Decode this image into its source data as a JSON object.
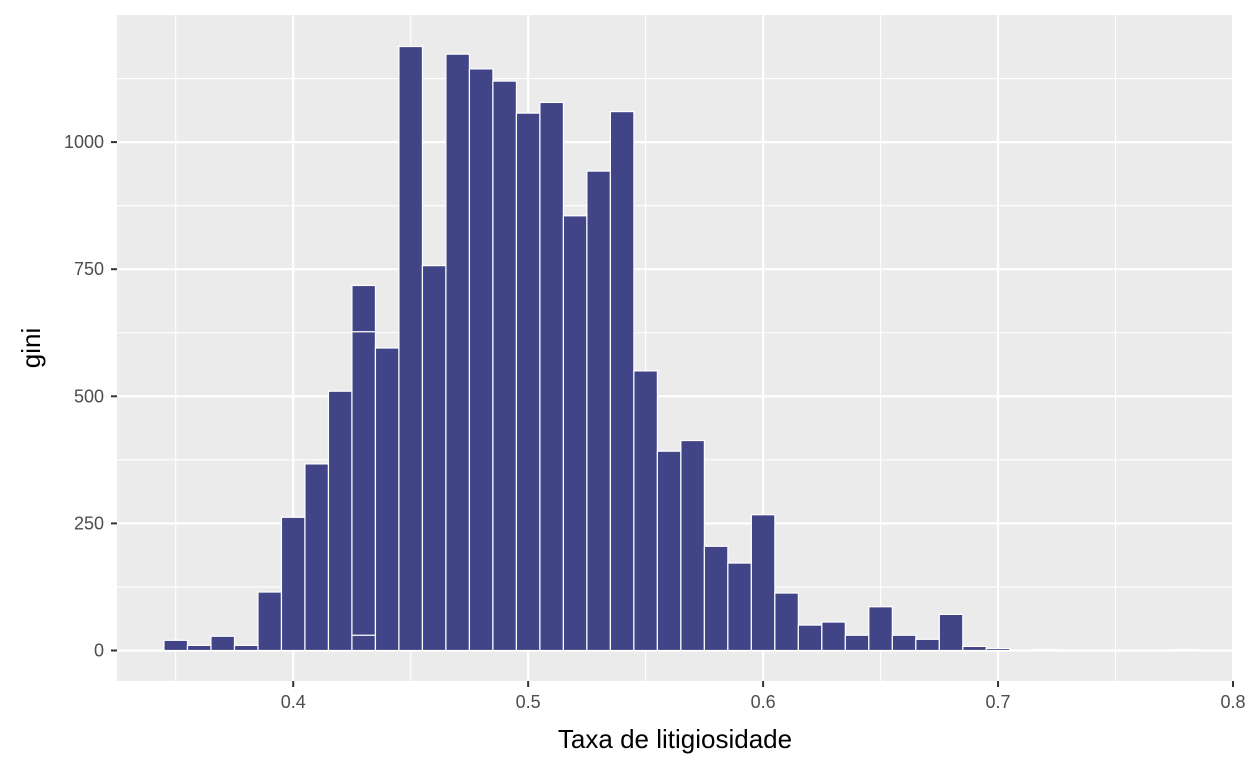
{
  "colors": {
    "panel": "#EBEBEB",
    "grid": "#FFFFFF",
    "bar_fill": "#414487",
    "bar_outline": "#FFFFFF",
    "tick_text": "#4D4D4D",
    "tick_mark": "#333333"
  },
  "chart_data": {
    "type": "bar",
    "subtype": "histogram",
    "title": "",
    "xlabel": "Taxa de litigiosidade",
    "ylabel": "gini",
    "xlim": [
      0.325,
      0.8
    ],
    "ylim": [
      -60,
      1250
    ],
    "x_ticks": [
      0.4,
      0.5,
      0.6,
      0.7,
      0.8
    ],
    "x_tick_labels": [
      "0.4",
      "0.5",
      "0.6",
      "0.7",
      "0.8"
    ],
    "y_ticks": [
      0,
      250,
      500,
      750,
      1000
    ],
    "y_tick_labels": [
      "0",
      "250",
      "500",
      "750",
      "1000"
    ],
    "grid": true,
    "legend": "none",
    "bin_width": 0.01,
    "x": [
      0.35,
      0.36,
      0.37,
      0.38,
      0.39,
      0.4,
      0.41,
      0.42,
      0.43,
      0.44,
      0.45,
      0.46,
      0.47,
      0.48,
      0.49,
      0.5,
      0.51,
      0.52,
      0.53,
      0.54,
      0.55,
      0.56,
      0.57,
      0.58,
      0.59,
      0.6,
      0.61,
      0.62,
      0.63,
      0.64,
      0.65,
      0.66,
      0.67,
      0.68,
      0.69,
      0.7,
      0.71,
      0.72,
      0.73,
      0.74,
      0.75,
      0.76,
      0.77,
      0.78
    ],
    "values": [
      20,
      10,
      28,
      10,
      115,
      262,
      367,
      510,
      718,
      595,
      1188,
      757,
      1173,
      1144,
      1120,
      1057,
      1078,
      855,
      943,
      1060,
      550,
      392,
      413,
      205,
      172,
      267,
      113,
      50,
      56,
      30,
      86,
      30,
      22,
      71,
      8,
      4,
      0,
      2,
      0,
      0,
      0,
      0,
      0,
      2
    ],
    "stack_lines": [
      {
        "x": 0.43,
        "y": [
          30,
          627
        ]
      }
    ]
  }
}
